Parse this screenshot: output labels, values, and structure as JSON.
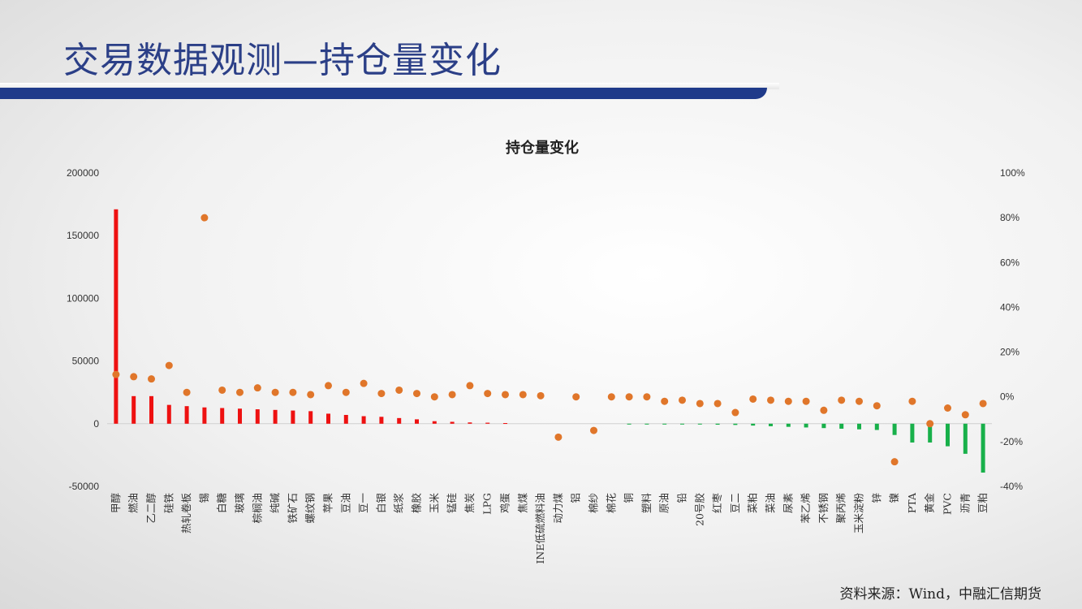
{
  "slide": {
    "title": "交易数据观测—持仓量变化",
    "source": "资料来源：Wind，中融汇信期货"
  },
  "colors": {
    "positive_bar": "#ee1111",
    "negative_bar": "#18b04a",
    "dot": "#e0762a",
    "title_blue": "#2b3f87"
  },
  "chart_data": {
    "type": "bar",
    "title": "持仓量变化",
    "primary_axis": {
      "min": -50000,
      "max": 200000,
      "ticks": [
        200000,
        150000,
        100000,
        50000,
        0,
        -50000
      ]
    },
    "secondary_axis": {
      "min": -40,
      "max": 100,
      "unit": "%",
      "ticks": [
        "100%",
        "80%",
        "60%",
        "40%",
        "20%",
        "0%",
        "-20%",
        "-40%"
      ]
    },
    "categories": [
      "甲醇",
      "燃油",
      "乙二醇",
      "硅铁",
      "热轧卷板",
      "锡",
      "白糖",
      "玻璃",
      "棕榈油",
      "纯碱",
      "铁矿石",
      "螺纹钢",
      "苹果",
      "豆油",
      "豆一",
      "白银",
      "纸浆",
      "橡胶",
      "玉米",
      "锰硅",
      "焦炭",
      "LPG",
      "鸡蛋",
      "焦煤",
      "INE低硫燃料油",
      "动力煤",
      "铝",
      "棉纱",
      "棉花",
      "铜",
      "塑料",
      "原油",
      "铅",
      "20号胶",
      "红枣",
      "豆二",
      "菜粕",
      "菜油",
      "尿素",
      "苯乙烯",
      "不锈钢",
      "聚丙烯",
      "玉米淀粉",
      "锌",
      "镍",
      "PTA",
      "黄金",
      "PVC",
      "沥青",
      "豆粕"
    ],
    "series": [
      {
        "kind": "bar",
        "axis": "primary",
        "values": [
          171000,
          22000,
          22000,
          15000,
          14000,
          13000,
          12500,
          12000,
          11500,
          11000,
          10500,
          10000,
          8000,
          7000,
          6000,
          5500,
          4500,
          3500,
          2000,
          1500,
          1000,
          800,
          500,
          0,
          0,
          0,
          0,
          0,
          0,
          -200,
          -300,
          -400,
          -500,
          -600,
          -800,
          -1000,
          -1500,
          -2000,
          -2500,
          -3000,
          -3500,
          -4000,
          -4500,
          -5000,
          -9000,
          -15000,
          -15000,
          -18000,
          -24000,
          -39000
        ]
      },
      {
        "kind": "scatter",
        "axis": "secondary",
        "values": [
          10,
          9,
          8,
          14,
          2,
          80,
          3,
          2,
          4,
          2,
          2,
          1,
          5,
          2,
          6,
          1.5,
          3,
          1.5,
          0,
          1,
          5,
          1.5,
          1,
          1,
          0.5,
          -18,
          0,
          -15,
          0,
          0,
          0,
          -2,
          -1.5,
          -3,
          -3,
          -7,
          -1,
          -1.5,
          -2,
          -2,
          -6,
          -1.5,
          -2,
          -4,
          -29,
          -2,
          -12,
          -5,
          -8,
          -3
        ]
      }
    ]
  }
}
